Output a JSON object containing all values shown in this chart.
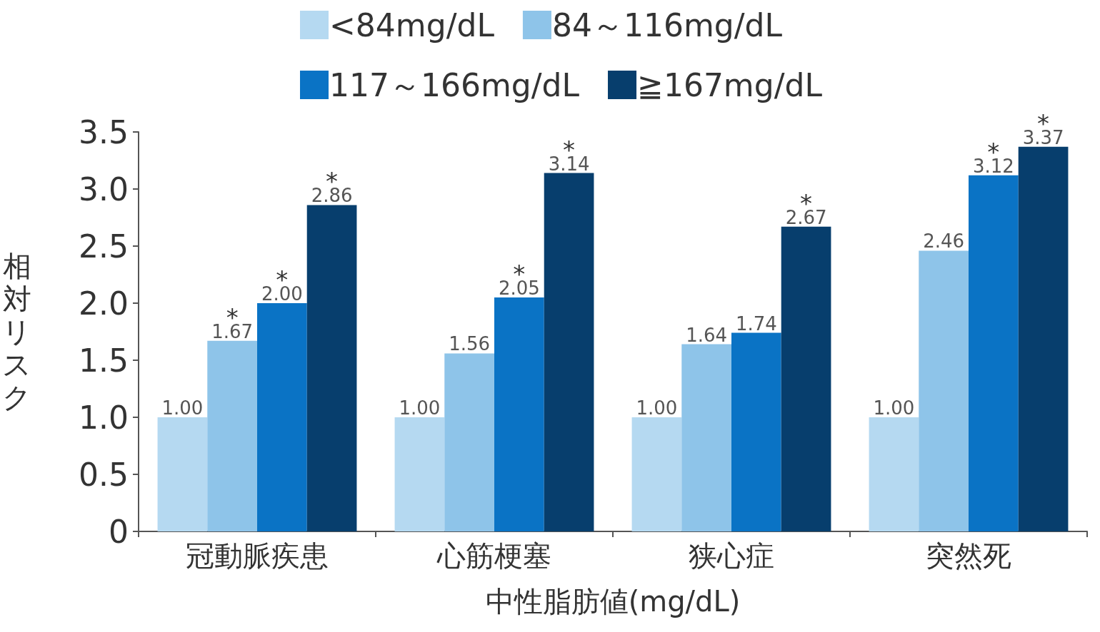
{
  "chart_data": {
    "type": "bar",
    "categories": [
      "冠動脈疾患",
      "心筋梗塞",
      "狭心症",
      "突然死"
    ],
    "xlabel": "中性脂肪値(mg/dL)",
    "ylabel": "相対リスク",
    "series": [
      {
        "name": "<84mg/dL",
        "color": "#b5d9f1",
        "values": [
          1.0,
          1.0,
          1.0,
          1.0
        ],
        "value_labels": [
          "1.00",
          "1.00",
          "1.00",
          "1.00"
        ]
      },
      {
        "name": "84～116mg/dL",
        "color": "#8ec4e9",
        "values": [
          1.67,
          1.56,
          1.64,
          2.46
        ],
        "value_labels": [
          "*\n1.67",
          "1.56",
          "1.64",
          "2.46"
        ]
      },
      {
        "name": "117～166mg/dL",
        "color": "#0a73c5",
        "values": [
          2.0,
          2.05,
          1.74,
          3.12
        ],
        "value_labels": [
          "*\n2.00",
          "*\n2.05",
          "1.74",
          "*\n3.12"
        ]
      },
      {
        "name": "≧167mg/dL",
        "color": "#073e6d",
        "values": [
          2.86,
          3.14,
          2.67,
          3.37
        ],
        "value_labels": [
          "*\n2.86",
          "*\n3.14",
          "*\n2.67",
          "*\n3.37"
        ]
      }
    ],
    "ylim": [
      0,
      3.5
    ],
    "yticks": [
      0,
      {
        "value": 0.5,
        "label": "0.5"
      },
      {
        "value": 1,
        "label": "1.0"
      },
      {
        "value": 1.5,
        "label": "1.5"
      },
      {
        "value": 2,
        "label": "2.0"
      },
      {
        "value": 2.5,
        "label": "2.5"
      },
      {
        "value": 3,
        "label": "3.0"
      },
      {
        "value": 3.5,
        "label": "3.5"
      }
    ],
    "grid": false,
    "legend": "top"
  }
}
